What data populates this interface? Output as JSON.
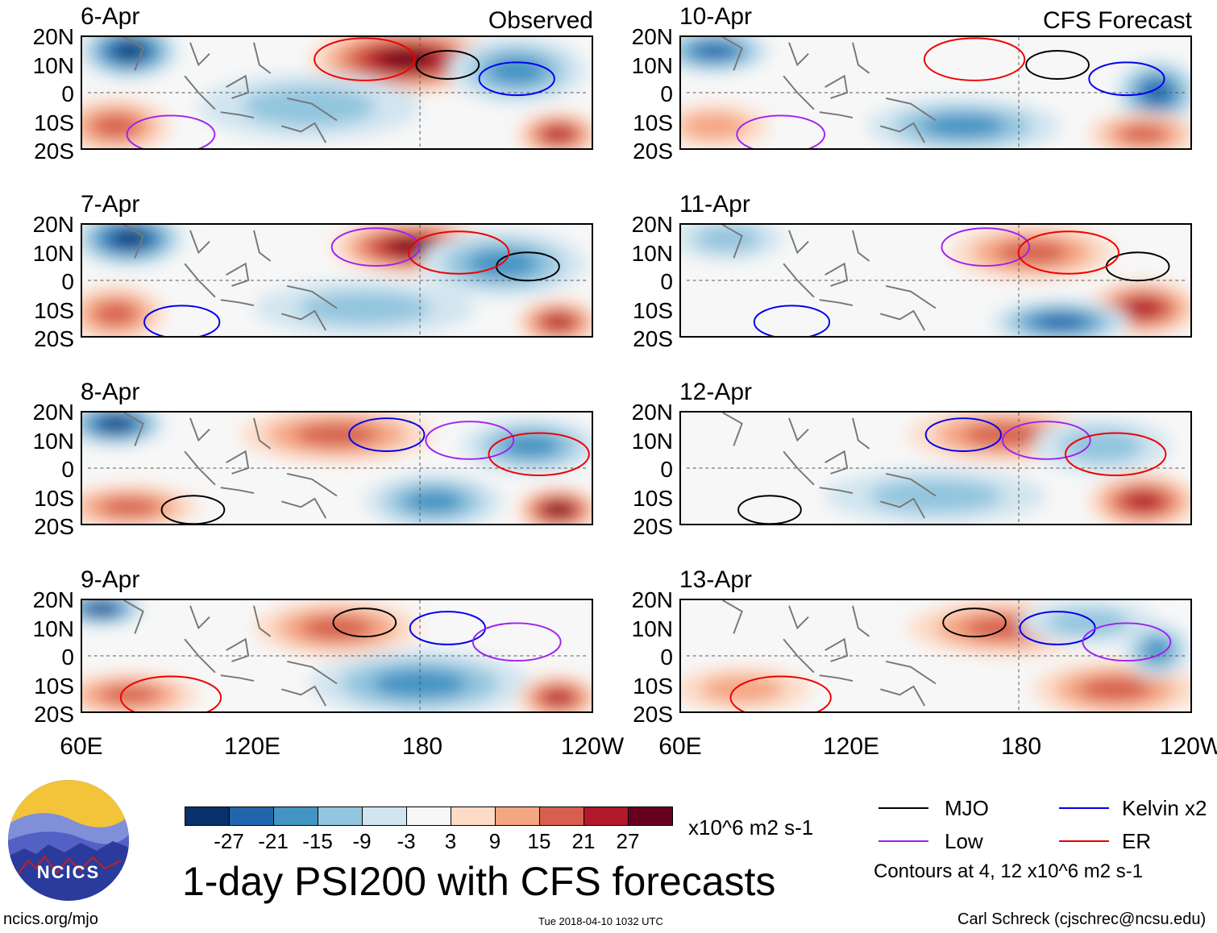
{
  "figure": {
    "main_title": "1-day PSI200 with CFS forecasts",
    "units": "x10^6 m2 s-1",
    "contour_note": "Contours at 4, 12 x10^6 m2 s-1",
    "website": "ncics.org/mjo",
    "timestamp": "Tue 2018-04-10 1032 UTC",
    "credit": "Carl Schreck (cjschrec@ncsu.edu)",
    "logo_text": "NCICS",
    "observed_label": "Observed",
    "forecast_label": "CFS Forecast",
    "observed_dates": [
      "6-Apr",
      "7-Apr",
      "8-Apr",
      "9-Apr"
    ],
    "forecast_dates": [
      "10-Apr",
      "11-Apr",
      "12-Apr",
      "13-Apr"
    ]
  },
  "chart_data": {
    "type": "heatmap",
    "variable": "PSI200 anomaly",
    "x_ticks": [
      "60E",
      "120E",
      "180",
      "120W"
    ],
    "x_range_deg_east": [
      60,
      240
    ],
    "y_ticks": [
      "20N",
      "10N",
      "0",
      "10S",
      "20S"
    ],
    "y_range_deg": [
      -20,
      20
    ],
    "colorbar": {
      "ticks": [
        "-27",
        "-21",
        "-15",
        "-9",
        "-3",
        "3",
        "9",
        "15",
        "21",
        "27"
      ],
      "colors": [
        "#08306b",
        "#2166ac",
        "#4393c3",
        "#92c5de",
        "#d1e5f0",
        "#f7f7f7",
        "#fddbc7",
        "#f4a582",
        "#d6604d",
        "#b2182b",
        "#67001f"
      ]
    },
    "contour_legend": [
      {
        "name": "MJO",
        "color": "#000000"
      },
      {
        "name": "Kelvin x2",
        "color": "#0000ee"
      },
      {
        "name": "Low",
        "color": "#a020f0"
      },
      {
        "name": "ER",
        "color": "#ee0000"
      }
    ],
    "panels": [
      {
        "date": "6-Apr",
        "source": "Observed",
        "anomaly_blobs": [
          {
            "lon": 75,
            "lat": 15,
            "value": -27,
            "extent": [
              18,
              10
            ]
          },
          {
            "lon": 175,
            "lat": 12,
            "value": 27,
            "extent": [
              35,
              12
            ]
          },
          {
            "lon": 215,
            "lat": 8,
            "value": -15,
            "extent": [
              25,
              12
            ]
          },
          {
            "lon": 70,
            "lat": -12,
            "value": 15,
            "extent": [
              20,
              10
            ]
          },
          {
            "lon": 230,
            "lat": -15,
            "value": 21,
            "extent": [
              15,
              8
            ]
          },
          {
            "lon": 140,
            "lat": -5,
            "value": -9,
            "extent": [
              40,
              12
            ]
          }
        ]
      },
      {
        "date": "7-Apr",
        "source": "Observed",
        "anomaly_blobs": [
          {
            "lon": 75,
            "lat": 15,
            "value": -27,
            "extent": [
              20,
              10
            ]
          },
          {
            "lon": 178,
            "lat": 12,
            "value": 27,
            "extent": [
              30,
              10
            ]
          },
          {
            "lon": 210,
            "lat": 6,
            "value": -15,
            "extent": [
              30,
              12
            ]
          },
          {
            "lon": 70,
            "lat": -12,
            "value": 15,
            "extent": [
              18,
              10
            ]
          },
          {
            "lon": 230,
            "lat": -15,
            "value": 21,
            "extent": [
              15,
              8
            ]
          },
          {
            "lon": 160,
            "lat": -10,
            "value": -9,
            "extent": [
              40,
              10
            ]
          }
        ]
      },
      {
        "date": "8-Apr",
        "source": "Observed",
        "anomaly_blobs": [
          {
            "lon": 70,
            "lat": 16,
            "value": -27,
            "extent": [
              18,
              8
            ]
          },
          {
            "lon": 150,
            "lat": 12,
            "value": 15,
            "extent": [
              35,
              10
            ]
          },
          {
            "lon": 220,
            "lat": 8,
            "value": -15,
            "extent": [
              25,
              10
            ]
          },
          {
            "lon": 75,
            "lat": -14,
            "value": 15,
            "extent": [
              25,
              8
            ]
          },
          {
            "lon": 230,
            "lat": -15,
            "value": 27,
            "extent": [
              15,
              8
            ]
          },
          {
            "lon": 185,
            "lat": -12,
            "value": -15,
            "extent": [
              25,
              10
            ]
          }
        ]
      },
      {
        "date": "9-Apr",
        "source": "Observed",
        "anomaly_blobs": [
          {
            "lon": 65,
            "lat": 17,
            "value": -27,
            "extent": [
              15,
              6
            ]
          },
          {
            "lon": 150,
            "lat": 10,
            "value": 15,
            "extent": [
              30,
              10
            ]
          },
          {
            "lon": 180,
            "lat": -10,
            "value": -15,
            "extent": [
              40,
              12
            ]
          },
          {
            "lon": 75,
            "lat": -14,
            "value": 15,
            "extent": [
              25,
              8
            ]
          },
          {
            "lon": 230,
            "lat": -15,
            "value": 21,
            "extent": [
              15,
              8
            ]
          }
        ]
      },
      {
        "date": "10-Apr",
        "source": "CFS Forecast",
        "anomaly_blobs": [
          {
            "lon": 70,
            "lat": 15,
            "value": -21,
            "extent": [
              20,
              8
            ]
          },
          {
            "lon": 230,
            "lat": 0,
            "value": -21,
            "extent": [
              15,
              12
            ]
          },
          {
            "lon": 160,
            "lat": -12,
            "value": -15,
            "extent": [
              35,
              10
            ]
          },
          {
            "lon": 225,
            "lat": -15,
            "value": 15,
            "extent": [
              20,
              8
            ]
          },
          {
            "lon": 70,
            "lat": -12,
            "value": 9,
            "extent": [
              20,
              8
            ]
          }
        ]
      },
      {
        "date": "11-Apr",
        "source": "CFS Forecast",
        "anomaly_blobs": [
          {
            "lon": 185,
            "lat": 10,
            "value": 15,
            "extent": [
              30,
              10
            ]
          },
          {
            "lon": 225,
            "lat": -10,
            "value": 21,
            "extent": [
              20,
              10
            ]
          },
          {
            "lon": 195,
            "lat": -15,
            "value": -21,
            "extent": [
              25,
              8
            ]
          },
          {
            "lon": 75,
            "lat": 15,
            "value": -9,
            "extent": [
              20,
              8
            ]
          }
        ]
      },
      {
        "date": "12-Apr",
        "source": "CFS Forecast",
        "anomaly_blobs": [
          {
            "lon": 175,
            "lat": 12,
            "value": 15,
            "extent": [
              35,
              10
            ]
          },
          {
            "lon": 225,
            "lat": -12,
            "value": 21,
            "extent": [
              20,
              10
            ]
          },
          {
            "lon": 210,
            "lat": 8,
            "value": -9,
            "extent": [
              25,
              10
            ]
          },
          {
            "lon": 150,
            "lat": -10,
            "value": -9,
            "extent": [
              40,
              10
            ]
          }
        ]
      },
      {
        "date": "13-Apr",
        "source": "CFS Forecast",
        "anomaly_blobs": [
          {
            "lon": 175,
            "lat": 10,
            "value": 15,
            "extent": [
              35,
              10
            ]
          },
          {
            "lon": 205,
            "lat": 12,
            "value": -9,
            "extent": [
              25,
              8
            ]
          },
          {
            "lon": 215,
            "lat": -12,
            "value": 15,
            "extent": [
              30,
              10
            ]
          },
          {
            "lon": 230,
            "lat": 2,
            "value": -15,
            "extent": [
              12,
              10
            ]
          },
          {
            "lon": 80,
            "lat": -12,
            "value": 9,
            "extent": [
              25,
              8
            ]
          }
        ]
      }
    ]
  }
}
